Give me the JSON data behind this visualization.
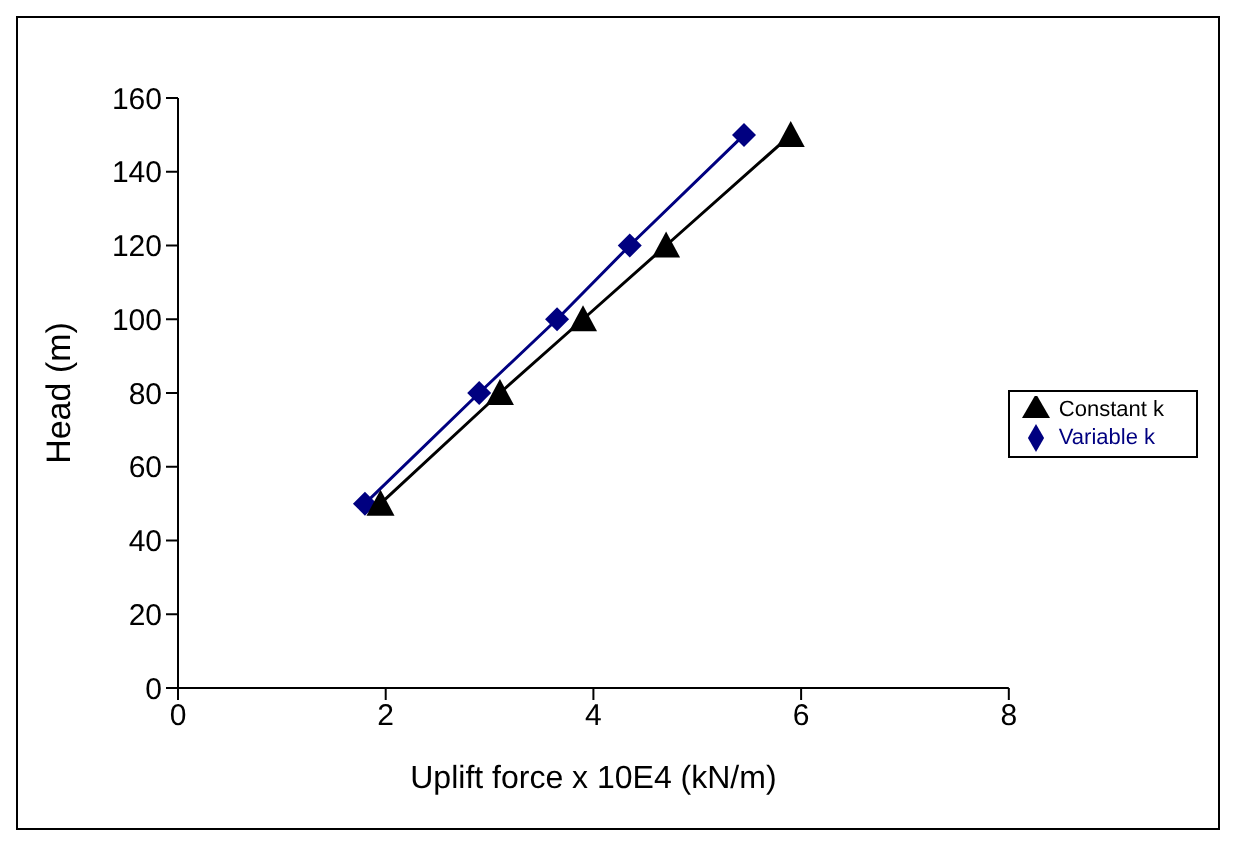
{
  "chart_data": {
    "type": "line",
    "xlabel": "Uplift force x 10E4 (kN/m)",
    "ylabel": "Head (m)",
    "xlim": [
      0,
      8
    ],
    "xticks": [
      0,
      2,
      4,
      6,
      8
    ],
    "ylim": [
      0,
      160
    ],
    "yticks": [
      0,
      20,
      40,
      60,
      80,
      100,
      120,
      140,
      160
    ],
    "grid": false,
    "legend": "right",
    "series": [
      {
        "name": "Variable k",
        "color": "#000080",
        "marker": "diamond",
        "x": [
          1.8,
          2.9,
          3.65,
          4.35,
          5.45
        ],
        "values": [
          50,
          80,
          100,
          120,
          150
        ]
      },
      {
        "name": "Constant k",
        "color": "#000000",
        "marker": "triangle",
        "x": [
          1.95,
          3.1,
          3.9,
          4.7,
          5.9
        ],
        "values": [
          50,
          80,
          100,
          120,
          150
        ]
      }
    ]
  }
}
